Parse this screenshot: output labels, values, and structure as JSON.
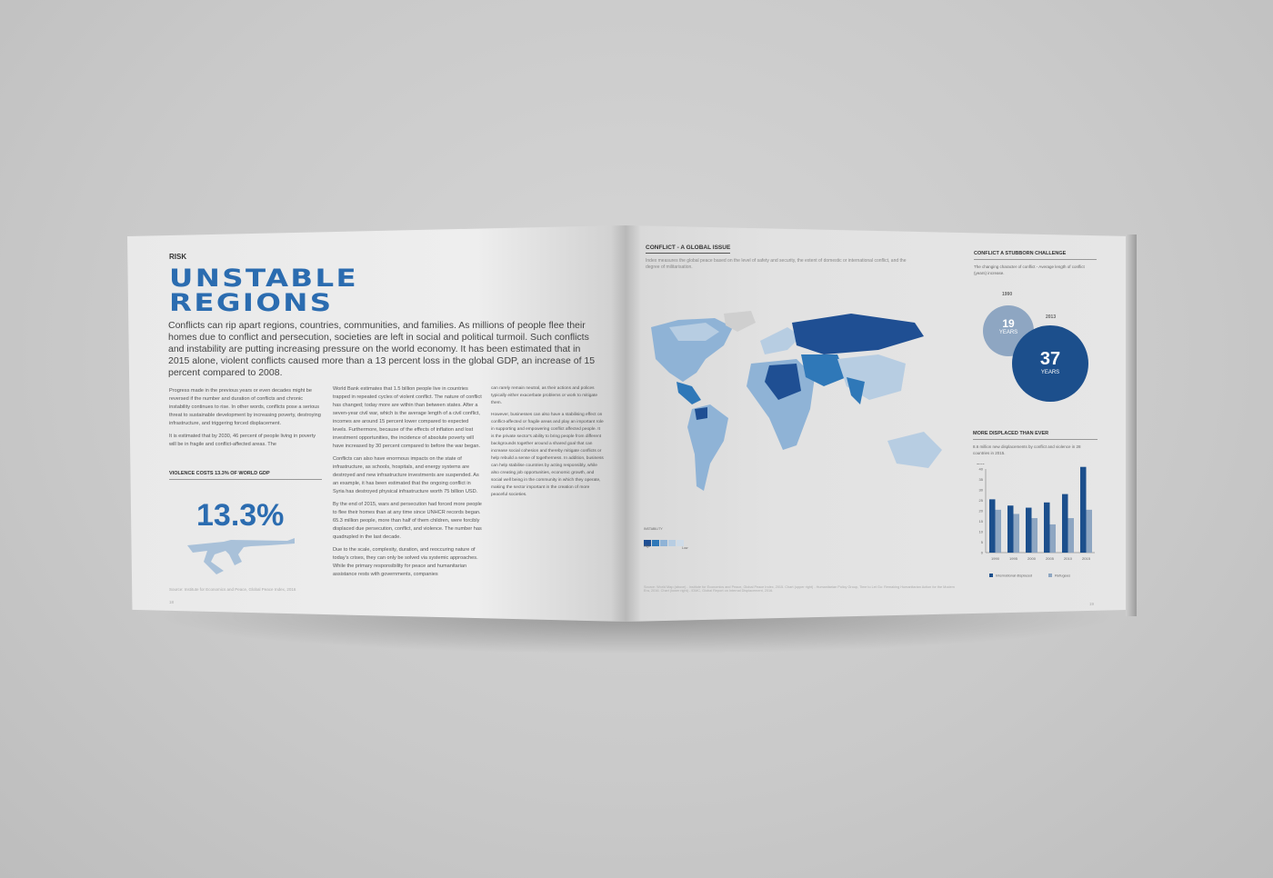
{
  "left_page": {
    "kicker": "RISK",
    "title_line1": "UNSTABLE",
    "title_line2": "REGIONS",
    "lead": "Conflicts can rip apart regions, countries, communities, and families. As millions of people flee their homes due to conflict and persecution, societies are left in social and political turmoil. Such conflicts and instability are putting increasing pressure on the world economy. It has been estimated that in 2015 alone, violent conflicts caused more than a 13 percent loss in the global GDP, an increase of 15 percent compared to 2008.",
    "col1": [
      "Progress made in the previous years or even decades might be reversed if the number and duration of conflicts and chronic instability continues to rise. In other words, conflicts pose a serious threat to sustainable development by increasing poverty, destroying infrastructure, and triggering forced displacement.",
      "It is estimated that by 2030, 46 percent of people living in poverty will be in fragile and conflict-affected areas. The"
    ],
    "stat_heading": "VIOLENCE COSTS 13.3% OF WORLD GDP",
    "stat_value": "13.3%",
    "stat_icon": "rifle-icon",
    "source": "Source: Institute for Economics and Peace, Global Peace Index, 2016",
    "page_number": "18",
    "col2": [
      "World Bank estimates that 1.5 billion people live in countries trapped in repeated cycles of violent conflict. The nature of conflict has changed; today more are within than between states. After a seven-year civil war, which is the average length of a civil conflict, incomes are around 15 percent lower compared to expected levels. Furthermore, because of the effects of inflation and lost investment opportunities, the incidence of absolute poverty will have increased by 30 percent compared to before the war began.",
      "Conflicts can also have enormous impacts on the state of infrastructure, as schools, hospitals, and energy systems are destroyed and new infrastructure investments are suspended. As an example, it has been estimated that the ongoing conflict in Syria has destroyed physical infrastructure worth 75 billion USD.",
      "By the end of 2015, wars and persecution had forced more people to flee their homes than at any time since UNHCR records began. 65.3 million people, more than half of them children, were forcibly displaced due persecution, conflict, and violence. The number has quadrupled in the last decade.",
      "Due to the scale, complexity, duration, and reoccuring nature of today's crises, they can only be solved via systemic approaches. While the primary responsibility for peace and humanitarian assistance rests with governments, companies"
    ],
    "col3": [
      "can rarely remain neutral, as their actions and polices typically either exacerbate problems or work to mitigate them.",
      "However, businesses can also have a stabilising effect on conflict-affected or fragile areas and play an important role in supporting and empowering conflict affected people. It is the private sector's ability to bring people from different backgrounds together around a shared goal that can increase social cohesion and thereby mitigate conflicts or help rebuild a sense of togetherness. In addition, business can help stabilise countries by acting responsibly, while also creating job opportunities, economic growth, and social well being in the community in which they operate, making the sector important in the creation of more peaceful societies."
    ]
  },
  "right_page": {
    "map_heading": "CONFLICT - A GLOBAL ISSUE",
    "map_subtitle": "Index measures the global peace based on the level of safety and security, the extent of domestic or international conflict, and the degree of militarisation.",
    "map_legend": {
      "title": "INSTABILITY",
      "low_label": "Low",
      "high_label": "High",
      "colors": [
        "#1f4f93",
        "#2f78b8",
        "#8fb3d6",
        "#b7cde2",
        "#cfdbe7"
      ]
    },
    "sources": "Source: World Map (above) - Institute for Economics and Peace, Global Peace Index, 2015. Chart (upper right) - Humanitarian Policy Group, Time to Let Go: Remaking Humanitarian Action for the Modern Era, 2016. Chart (lower right) - IDMC, Global Report on Internal Displacement, 2016.",
    "page_number": "19",
    "circles": {
      "heading": "CONFLICT A STUBBORN CHALLENGE",
      "subtitle": "The changing character of conflict - Average length of conflict (years) increase.",
      "items": [
        {
          "year": "1990",
          "value": "19",
          "unit": "YEARS",
          "color": "#8ea6c2"
        },
        {
          "year": "2013",
          "value": "37",
          "unit": "YEARS",
          "color": "#1c4f8c"
        }
      ]
    }
  },
  "chart_data": {
    "type": "bar",
    "title": "MORE DISPLACED THAN EVER",
    "subtitle": "8.6 million new displacements by conflict and violence in 28 countries in 2015.",
    "ylabel": "MILL",
    "ylim": [
      0,
      40
    ],
    "yticks": [
      "0",
      "5",
      "10",
      "15",
      "20",
      "25",
      "30",
      "35",
      "40"
    ],
    "categories": [
      "1990",
      "1995",
      "2000",
      "2005",
      "2010",
      "2015"
    ],
    "series": [
      {
        "name": "International displaced",
        "color": "#1c4f8c",
        "values": [
          25.5,
          22.5,
          21.5,
          24,
          28,
          41
        ]
      },
      {
        "name": "Refugees",
        "color": "#8ea6c2",
        "values": [
          20.5,
          18.5,
          16.5,
          13.5,
          16.5,
          20.5
        ]
      }
    ],
    "grid": false,
    "legend": "bottom"
  }
}
